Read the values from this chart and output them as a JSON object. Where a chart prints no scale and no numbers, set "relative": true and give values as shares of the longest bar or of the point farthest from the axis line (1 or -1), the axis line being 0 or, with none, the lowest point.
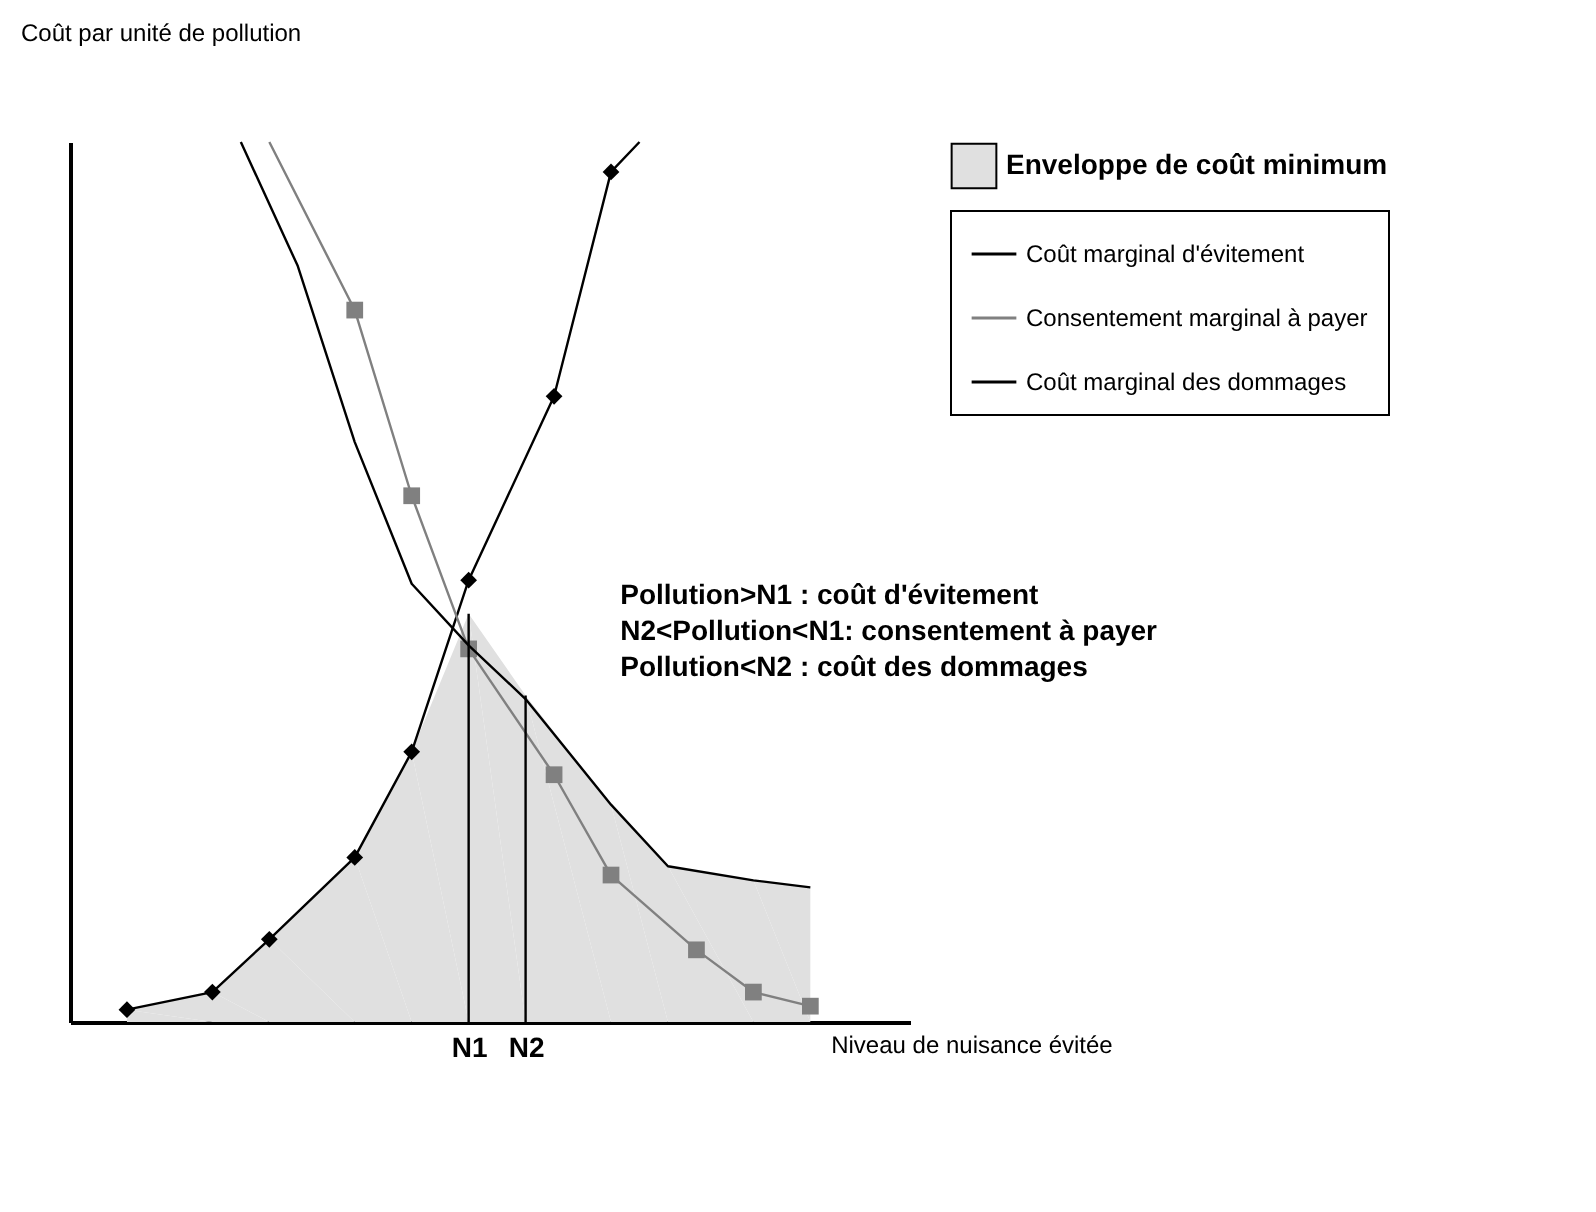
{
  "chart_data": {
    "type": "line",
    "relative": true,
    "xlabel": "Niveau de nuisance évitée",
    "ylabel": "Coût par unité de pollution",
    "legend": "right",
    "grid": false,
    "categories": [
      null,
      null,
      null,
      null,
      null,
      null,
      null,
      null,
      null,
      null,
      null,
      null,
      null,
      "N1",
      null,
      "N2",
      null,
      null,
      null,
      null,
      null,
      null,
      null,
      null,
      null,
      null,
      null
    ],
    "series": [
      {
        "type": "area",
        "name": "Enveloppe de coût minimum",
        "color": "#e0e0e0",
        "values": [
          null,
          0.014,
          null,
          null,
          0.034,
          null,
          0.094,
          null,
          null,
          0.187,
          null,
          0.307,
          null,
          0.464,
          null,
          0.371,
          null,
          null,
          0.247,
          null,
          0.177,
          null,
          null,
          0.161,
          null,
          0.153,
          null
        ]
      },
      {
        "name": "Coût marginal d'évitement",
        "color": "#000000",
        "marker": "diamond",
        "values": [
          null,
          0.014,
          null,
          null,
          0.034,
          null,
          0.094,
          null,
          null,
          0.187,
          null,
          0.307,
          null,
          0.502,
          null,
          null,
          0.711,
          null,
          0.966,
          1,
          null,
          null,
          null,
          null,
          null,
          null,
          null
        ]
      },
      {
        "name": "Consentement marginal à payer",
        "color": "#808080",
        "marker": "square",
        "values": [
          null,
          null,
          null,
          null,
          null,
          null,
          1,
          null,
          null,
          0.809,
          null,
          0.598,
          null,
          0.424,
          null,
          null,
          0.281,
          null,
          0.167,
          null,
          null,
          0.082,
          null,
          0.034,
          null,
          0.018,
          null
        ]
      },
      {
        "name": "Coût marginal des dommages",
        "color": "#000000",
        "marker": "none",
        "values": [
          null,
          null,
          null,
          null,
          null,
          1,
          null,
          0.859,
          null,
          0.659,
          null,
          0.498,
          null,
          0.428,
          null,
          0.367,
          null,
          null,
          0.247,
          null,
          0.177,
          null,
          null,
          0.161,
          null,
          0.153,
          null
        ]
      }
    ],
    "ref_lines": [
      {
        "axis": "x",
        "value": "N1",
        "color": "#000000"
      },
      {
        "axis": "x",
        "value": "N2",
        "color": "#000000"
      }
    ],
    "annotations": [
      "Pollution>N1 : coût d'évitement",
      "N2<Pollution<N1: consentement à payer",
      "Pollution<N2 : coût des dommages"
    ]
  }
}
